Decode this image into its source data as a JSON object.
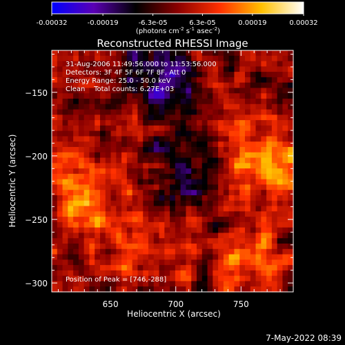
{
  "colorbar": {
    "ticks": [
      "-0.00032",
      "-0.00019",
      "-6.3e-05",
      "6.3e-05",
      "0.00019",
      "0.00032"
    ],
    "tick_values": [
      -0.00032,
      -0.00019,
      -6.3e-05,
      6.3e-05,
      0.00019,
      0.00032
    ],
    "range": [
      -0.00032,
      0.00032
    ],
    "unit_main": "(photons cm",
    "unit_sup1": "-2",
    "unit_mid": " s",
    "unit_sup2": "-1",
    "unit_end": " asec",
    "unit_sup3": "-2",
    "unit_close": ")",
    "colormap": [
      "#0000ff",
      "#5a00b4",
      "#000000",
      "#8b0000",
      "#ff3000",
      "#ffc000",
      "#ffffff"
    ]
  },
  "chart_data": {
    "type": "heatmap",
    "title": "Reconstructed RHESSI Image",
    "xlabel": "Heliocentric X (arcsec)",
    "ylabel": "Heliocentric Y (arcsec)",
    "xlim": [
      605,
      790
    ],
    "ylim": [
      -307,
      -117
    ],
    "x_ticks": [
      650,
      700,
      750
    ],
    "y_ticks": [
      -150,
      -200,
      -250,
      -300
    ],
    "x_tick_labels": [
      "650",
      "700",
      "750"
    ],
    "y_tick_labels": [
      "−150",
      "−200",
      "−250",
      "−300"
    ],
    "annotations": [
      "31-Aug-2006 11:49:56.000 to 11:53:56.000",
      "Detectors: 3F 4F 5F 6F 7F 8F, Att 0",
      "Energy Range: 25.0 - 50.0 keV",
      "Clean    Total counts: 6.27E+03"
    ],
    "peak_label": "Position of Peak = [746,-288]",
    "peak_position": [
      746,
      -288
    ],
    "grid": false
  },
  "timestamp": "7-May-2022 08:39"
}
